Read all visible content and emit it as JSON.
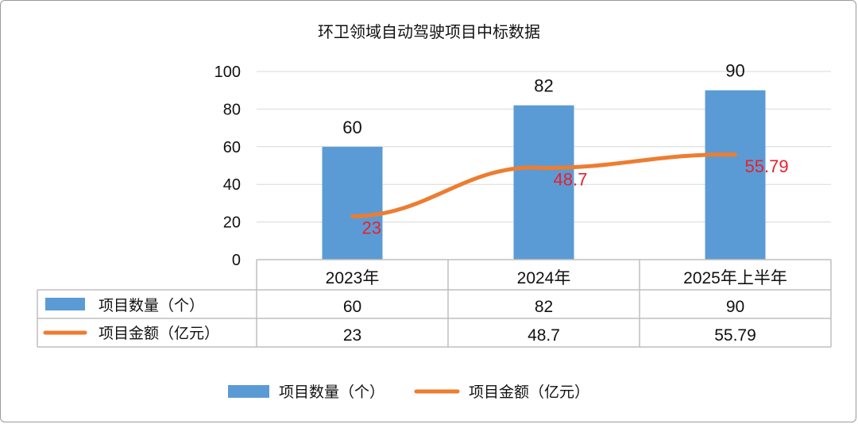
{
  "chart_data": {
    "type": "bar",
    "title": "环卫领域自动驾驶项目中标数据",
    "categories": [
      "2023年",
      "2024年",
      "2025年上半年"
    ],
    "ylim": [
      0,
      100
    ],
    "yticks": [
      0,
      20,
      40,
      60,
      80,
      100
    ],
    "grid": true,
    "legend_position": "bottom",
    "series": [
      {
        "name": "项目数量（个）",
        "type": "bar",
        "color": "#5b9bd5",
        "values": [
          60,
          82,
          90
        ],
        "labels": [
          "60",
          "82",
          "90"
        ]
      },
      {
        "name": "项目金额（亿元）",
        "type": "line",
        "color": "#ed7d31",
        "label_color": "#e8202a",
        "values": [
          23,
          48.7,
          55.79
        ],
        "labels": [
          "23",
          "48.7",
          "55.79"
        ]
      }
    ]
  }
}
